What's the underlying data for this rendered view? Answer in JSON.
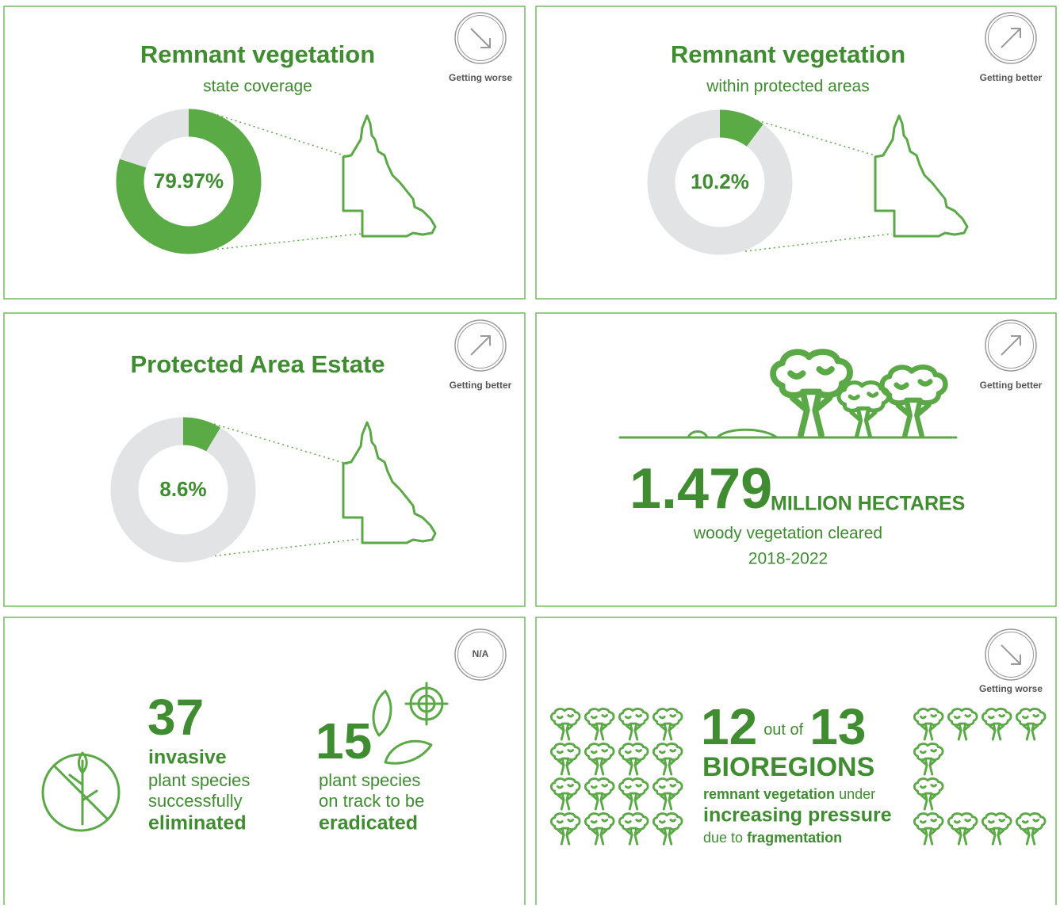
{
  "panels": [
    {
      "title": "Remnant vegetation",
      "subtitle": "state coverage",
      "status": "Getting worse",
      "donut": {
        "value": 79.97,
        "value_label": "79.97%"
      }
    },
    {
      "title": "Remnant vegetation",
      "subtitle": "within protected areas",
      "status": "Getting better",
      "donut": {
        "value": 10.2,
        "value_label": "10.2%"
      }
    },
    {
      "title": "Protected Area Estate",
      "status": "Getting better",
      "donut": {
        "value": 8.6,
        "value_label": "8.6%"
      }
    },
    {
      "status": "Getting better",
      "big_number": 1.479,
      "unit": "MILLION HECTARES",
      "caption": [
        "woody vegetation cleared",
        "2018-2022"
      ]
    },
    {
      "status": "N/A",
      "stats": [
        {
          "number": 37,
          "lines": [
            "invasive",
            "plant species",
            "successfully",
            "eliminated"
          ]
        },
        {
          "number": 15,
          "lines": [
            "plant species",
            "on track to be",
            "eradicated"
          ]
        }
      ]
    },
    {
      "status": "Getting worse",
      "count": 12,
      "out_of_text": "out of",
      "total": 13,
      "unit": "BIOREGIONS",
      "lines": [
        [
          "remnant vegetation",
          "under"
        ],
        [
          "increasing pressure"
        ],
        [
          "due to",
          "fragmentation"
        ]
      ]
    }
  ]
}
